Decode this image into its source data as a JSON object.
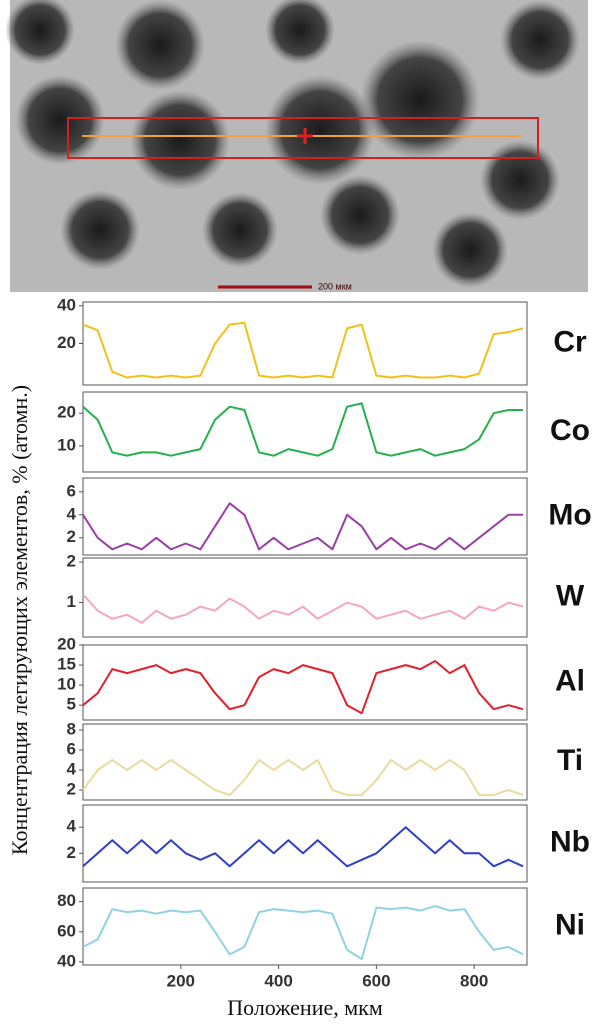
{
  "image": {
    "scale_bar": "200 мкм"
  },
  "y_axis_label": "Концентрация легирующих элементов, % (атомн.)",
  "x_axis_label": "Положение, мкм",
  "chart_data": [
    {
      "type": "line",
      "title": "Cr",
      "color": "#f2c01b",
      "x": [
        0,
        30,
        60,
        90,
        120,
        150,
        180,
        210,
        240,
        270,
        300,
        330,
        360,
        390,
        420,
        450,
        480,
        510,
        540,
        570,
        600,
        630,
        660,
        690,
        720,
        750,
        780,
        810,
        840,
        870,
        900
      ],
      "values": [
        30,
        27,
        5,
        2,
        3,
        2,
        3,
        2,
        3,
        20,
        30,
        31,
        3,
        2,
        3,
        2,
        3,
        2,
        28,
        30,
        3,
        2,
        3,
        2,
        2,
        3,
        2,
        4,
        25,
        26,
        28
      ],
      "xlim": [
        0,
        908
      ],
      "ylim": [
        -2,
        42
      ],
      "yticks": [
        20,
        40
      ]
    },
    {
      "type": "line",
      "title": "Co",
      "color": "#22b14c",
      "x": [
        0,
        30,
        60,
        90,
        120,
        150,
        180,
        210,
        240,
        270,
        300,
        330,
        360,
        390,
        420,
        450,
        480,
        510,
        540,
        570,
        600,
        630,
        660,
        690,
        720,
        750,
        780,
        810,
        840,
        870,
        900
      ],
      "values": [
        22,
        18,
        8,
        7,
        8,
        8,
        7,
        8,
        9,
        18,
        22,
        21,
        8,
        7,
        9,
        8,
        7,
        9,
        22,
        23,
        8,
        7,
        8,
        9,
        7,
        8,
        9,
        12,
        20,
        21,
        21
      ],
      "xlim": [
        0,
        908
      ],
      "ylim": [
        2,
        26.5
      ],
      "yticks": [
        10,
        20
      ]
    },
    {
      "type": "line",
      "title": "Mo",
      "color": "#9b3fa8",
      "x": [
        0,
        30,
        60,
        90,
        120,
        150,
        180,
        210,
        240,
        270,
        300,
        330,
        360,
        390,
        420,
        450,
        480,
        510,
        540,
        570,
        600,
        630,
        660,
        690,
        720,
        750,
        780,
        810,
        840,
        870,
        900
      ],
      "values": [
        4,
        2,
        1,
        1.5,
        1,
        2,
        1,
        1.5,
        1,
        3,
        5,
        4,
        1,
        2,
        1,
        1.5,
        2,
        1,
        4,
        3,
        1,
        2,
        1,
        1.5,
        1,
        2,
        1,
        2,
        3,
        4,
        4
      ],
      "xlim": [
        0,
        908
      ],
      "ylim": [
        0.5,
        7.2
      ],
      "yticks": [
        2,
        4,
        6
      ]
    },
    {
      "type": "line",
      "title": "W",
      "color": "#f5a6c2",
      "x": [
        0,
        30,
        60,
        90,
        120,
        150,
        180,
        210,
        240,
        270,
        300,
        330,
        360,
        390,
        420,
        450,
        480,
        510,
        540,
        570,
        600,
        630,
        660,
        690,
        720,
        750,
        780,
        810,
        840,
        870,
        900
      ],
      "values": [
        1.2,
        0.8,
        0.6,
        0.7,
        0.5,
        0.8,
        0.6,
        0.7,
        0.9,
        0.8,
        1.1,
        0.9,
        0.6,
        0.8,
        0.7,
        0.9,
        0.6,
        0.8,
        1,
        0.9,
        0.6,
        0.7,
        0.8,
        0.6,
        0.7,
        0.8,
        0.6,
        0.9,
        0.8,
        1,
        0.9
      ],
      "xlim": [
        0,
        908
      ],
      "ylim": [
        0.15,
        2.1
      ],
      "yticks": [
        1,
        2
      ]
    },
    {
      "type": "line",
      "title": "Al",
      "color": "#e0202a",
      "x": [
        0,
        30,
        60,
        90,
        120,
        150,
        180,
        210,
        240,
        270,
        300,
        330,
        360,
        390,
        420,
        450,
        480,
        510,
        540,
        570,
        600,
        630,
        660,
        690,
        720,
        750,
        780,
        810,
        840,
        870,
        900
      ],
      "values": [
        5,
        8,
        14,
        13,
        14,
        15,
        13,
        14,
        13,
        8,
        4,
        5,
        12,
        14,
        13,
        15,
        14,
        13,
        5,
        3,
        13,
        14,
        15,
        14,
        16,
        13,
        15,
        8,
        4,
        5,
        4
      ],
      "xlim": [
        0,
        908
      ],
      "ylim": [
        1.3,
        20
      ],
      "yticks": [
        5,
        10,
        15,
        20
      ]
    },
    {
      "type": "line",
      "title": "Ti",
      "color": "#e8dca0",
      "x": [
        0,
        30,
        60,
        90,
        120,
        150,
        180,
        210,
        240,
        270,
        300,
        330,
        360,
        390,
        420,
        450,
        480,
        510,
        540,
        570,
        600,
        630,
        660,
        690,
        720,
        750,
        780,
        810,
        840,
        870,
        900
      ],
      "values": [
        2,
        4,
        5,
        4,
        5,
        4,
        5,
        4,
        3,
        2,
        1.5,
        3,
        5,
        4,
        5,
        4,
        5,
        2,
        1.5,
        1.5,
        3,
        5,
        4,
        5,
        4,
        5,
        4,
        1.5,
        1.5,
        2,
        1.5
      ],
      "xlim": [
        0,
        908
      ],
      "ylim": [
        1,
        8.6
      ],
      "yticks": [
        2,
        4,
        6,
        8
      ]
    },
    {
      "type": "line",
      "title": "Nb",
      "color": "#2f3fc8",
      "x": [
        0,
        30,
        60,
        90,
        120,
        150,
        180,
        210,
        240,
        270,
        300,
        330,
        360,
        390,
        420,
        450,
        480,
        510,
        540,
        570,
        600,
        630,
        660,
        690,
        720,
        750,
        780,
        810,
        840,
        870,
        900
      ],
      "values": [
        1,
        2,
        3,
        2,
        3,
        2,
        3,
        2,
        1.5,
        2,
        1,
        2,
        3,
        2,
        3,
        2,
        3,
        2,
        1,
        1.5,
        2,
        3,
        4,
        3,
        2,
        3,
        2,
        2,
        1,
        1.5,
        1
      ],
      "xlim": [
        0,
        908
      ],
      "ylim": [
        -0.2,
        5.7
      ],
      "yticks": [
        2,
        4
      ]
    },
    {
      "type": "line",
      "title": "Ni",
      "color": "#8fd3e3",
      "x": [
        0,
        30,
        60,
        90,
        120,
        150,
        180,
        210,
        240,
        270,
        300,
        330,
        360,
        390,
        420,
        450,
        480,
        510,
        540,
        570,
        600,
        630,
        660,
        690,
        720,
        750,
        780,
        810,
        840,
        870,
        900
      ],
      "values": [
        50,
        55,
        75,
        73,
        74,
        72,
        74,
        73,
        74,
        60,
        45,
        50,
        73,
        75,
        74,
        73,
        74,
        72,
        48,
        42,
        76,
        75,
        76,
        74,
        77,
        74,
        75,
        60,
        48,
        50,
        45
      ],
      "xlim": [
        0,
        908
      ],
      "ylim": [
        38,
        89
      ],
      "yticks": [
        40,
        60,
        80
      ],
      "xticks": [
        200,
        400,
        600,
        800
      ]
    }
  ]
}
